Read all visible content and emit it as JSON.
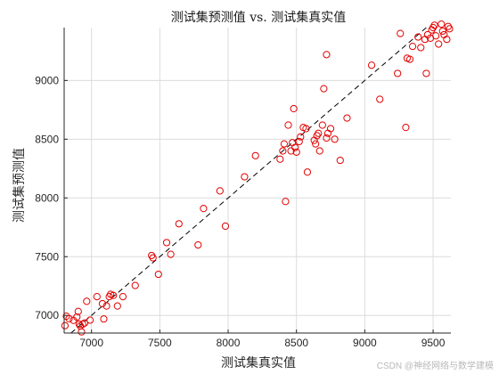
{
  "colors": {
    "marker": "#e30000",
    "grid": "#dcdcdc",
    "axis": "#262626",
    "fit_line": "#000000"
  },
  "watermark": "CSDN @神经网络与数学建模",
  "chart_data": {
    "type": "scatter",
    "title": "测试集预测值 vs. 测试集真实值",
    "xlabel": "测试集真实值",
    "ylabel": "测试集预测值",
    "xlim": [
      6800,
      9630
    ],
    "ylim": [
      6850,
      9450
    ],
    "xticks": [
      7000,
      7500,
      8000,
      8500,
      9000,
      9500
    ],
    "yticks": [
      7000,
      7500,
      8000,
      8500,
      9000
    ],
    "grid": true,
    "box": false,
    "marker": "open-circle",
    "reference_line": {
      "style": "dashed",
      "equation": "y = x"
    },
    "series": [
      {
        "points": [
          [
            6806,
            6913
          ],
          [
            6816,
            6993
          ],
          [
            6836,
            6972
          ],
          [
            6868,
            6958
          ],
          [
            6893,
            6986
          ],
          [
            6903,
            7034
          ],
          [
            6910,
            6925
          ],
          [
            6918,
            6910
          ],
          [
            6927,
            6860
          ],
          [
            6936,
            6925
          ],
          [
            6950,
            6935
          ],
          [
            6965,
            7120
          ],
          [
            6990,
            6960
          ],
          [
            7040,
            7160
          ],
          [
            7080,
            7100
          ],
          [
            7090,
            6970
          ],
          [
            7110,
            7080
          ],
          [
            7130,
            7160
          ],
          [
            7140,
            7180
          ],
          [
            7160,
            7170
          ],
          [
            7190,
            7080
          ],
          [
            7230,
            7160
          ],
          [
            7320,
            7255
          ],
          [
            7440,
            7510
          ],
          [
            7450,
            7490
          ],
          [
            7490,
            7350
          ],
          [
            7550,
            7620
          ],
          [
            7580,
            7520
          ],
          [
            7640,
            7780
          ],
          [
            7780,
            7600
          ],
          [
            7820,
            7910
          ],
          [
            7940,
            8060
          ],
          [
            7980,
            7760
          ],
          [
            8120,
            8180
          ],
          [
            8200,
            8360
          ],
          [
            8380,
            8330
          ],
          [
            8400,
            8400
          ],
          [
            8410,
            8460
          ],
          [
            8420,
            7970
          ],
          [
            8440,
            8620
          ],
          [
            8460,
            8400
          ],
          [
            8470,
            8470
          ],
          [
            8480,
            8760
          ],
          [
            8490,
            8430
          ],
          [
            8500,
            8390
          ],
          [
            8520,
            8480
          ],
          [
            8530,
            8520
          ],
          [
            8550,
            8600
          ],
          [
            8570,
            8590
          ],
          [
            8580,
            8220
          ],
          [
            8630,
            8490
          ],
          [
            8640,
            8460
          ],
          [
            8650,
            8530
          ],
          [
            8660,
            8550
          ],
          [
            8670,
            8400
          ],
          [
            8690,
            8620
          ],
          [
            8700,
            8930
          ],
          [
            8720,
            9220
          ],
          [
            8720,
            8510
          ],
          [
            8730,
            8550
          ],
          [
            8750,
            8590
          ],
          [
            8780,
            8500
          ],
          [
            8820,
            8320
          ],
          [
            8870,
            8680
          ],
          [
            9050,
            9130
          ],
          [
            9110,
            8840
          ],
          [
            9240,
            9060
          ],
          [
            9260,
            9400
          ],
          [
            9300,
            8600
          ],
          [
            9310,
            9190
          ],
          [
            9330,
            9180
          ],
          [
            9350,
            9290
          ],
          [
            9390,
            9370
          ],
          [
            9410,
            9280
          ],
          [
            9440,
            9350
          ],
          [
            9450,
            9060
          ],
          [
            9460,
            9390
          ],
          [
            9480,
            9360
          ],
          [
            9490,
            9430
          ],
          [
            9500,
            9450
          ],
          [
            9510,
            9470
          ],
          [
            9520,
            9380
          ],
          [
            9540,
            9310
          ],
          [
            9560,
            9480
          ],
          [
            9570,
            9420
          ],
          [
            9580,
            9390
          ],
          [
            9600,
            9350
          ],
          [
            9610,
            9460
          ],
          [
            9620,
            9440
          ]
        ]
      }
    ]
  }
}
